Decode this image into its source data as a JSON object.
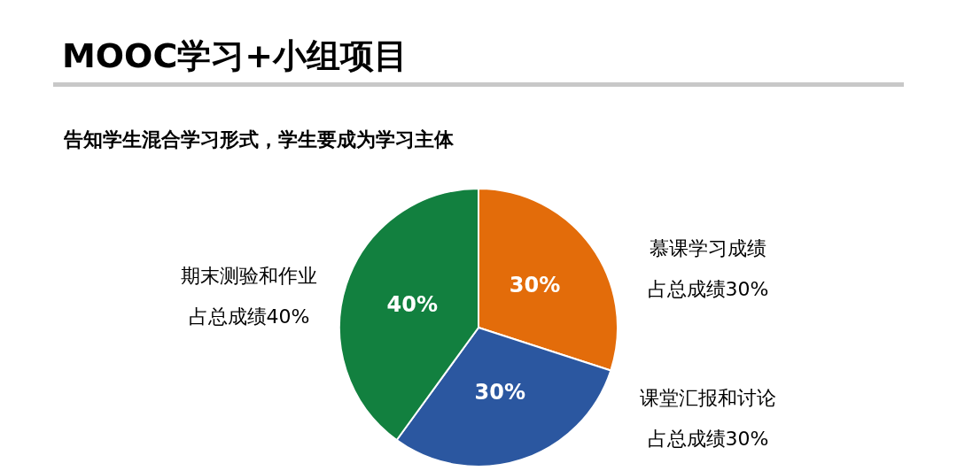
{
  "chart_data": {
    "type": "pie",
    "title": "MOOC学习+小组项目",
    "subtitle": "告知学生混合学习形式，学生要成为学习主体",
    "categories": [
      "慕课学习成绩",
      "课堂汇报和讨论",
      "期末测验和作业"
    ],
    "annotations": [
      "占总成绩30%",
      "占总成绩30%",
      "占总成绩40%"
    ],
    "value_labels": [
      "30%",
      "30%",
      "40%"
    ],
    "values": [
      30,
      30,
      40
    ],
    "colors": [
      "#e36c0a",
      "#2b57a0",
      "#12803f"
    ],
    "legend": false
  }
}
